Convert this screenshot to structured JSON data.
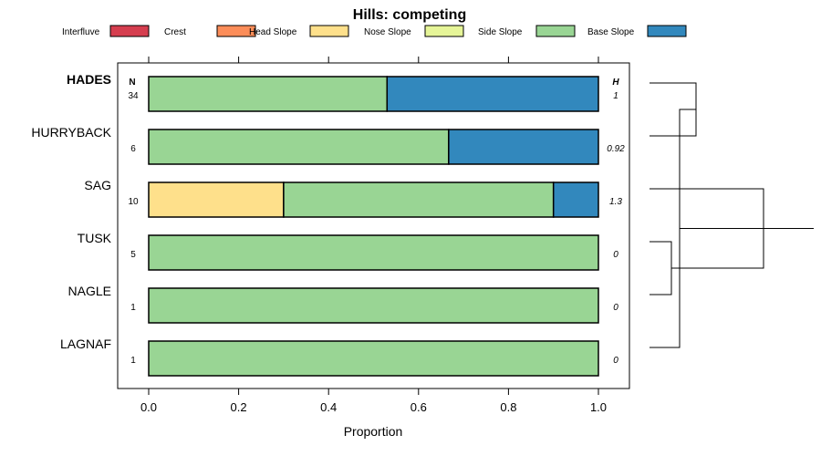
{
  "chart_data": {
    "type": "bar",
    "stacked": true,
    "title": "Hills: competing",
    "xlabel": "Proportion",
    "xlim": [
      0,
      1
    ],
    "xticks": [
      "0.0",
      "0.2",
      "0.4",
      "0.6",
      "0.8",
      "1.0"
    ],
    "n_header": "N",
    "h_header": "H",
    "legend": [
      {
        "name": "Interfluve",
        "color": "#D53E4F"
      },
      {
        "name": "Crest",
        "color": "#FC8D59"
      },
      {
        "name": "Head Slope",
        "color": "#FEE08B"
      },
      {
        "name": "Nose Slope",
        "color": "#E6F598"
      },
      {
        "name": "Side Slope",
        "color": "#99D594"
      },
      {
        "name": "Base Slope",
        "color": "#3288BD"
      }
    ],
    "rows": [
      {
        "name": "HADES",
        "bold": true,
        "n": "34",
        "h": "1",
        "segments": [
          {
            "class": "Side Slope",
            "value": 0.53
          },
          {
            "class": "Base Slope",
            "value": 0.47
          }
        ]
      },
      {
        "name": "HURRYBACK",
        "bold": false,
        "n": "6",
        "h": "0.92",
        "segments": [
          {
            "class": "Side Slope",
            "value": 0.667
          },
          {
            "class": "Base Slope",
            "value": 0.333
          }
        ]
      },
      {
        "name": "SAG",
        "bold": false,
        "n": "10",
        "h": "1.3",
        "segments": [
          {
            "class": "Head Slope",
            "value": 0.3
          },
          {
            "class": "Side Slope",
            "value": 0.6
          },
          {
            "class": "Base Slope",
            "value": 0.1
          }
        ]
      },
      {
        "name": "TUSK",
        "bold": false,
        "n": "5",
        "h": "0",
        "segments": [
          {
            "class": "Side Slope",
            "value": 1.0
          }
        ]
      },
      {
        "name": "NAGLE",
        "bold": false,
        "n": "1",
        "h": "0",
        "segments": [
          {
            "class": "Side Slope",
            "value": 1.0
          }
        ]
      },
      {
        "name": "LAGNAF",
        "bold": false,
        "n": "1",
        "h": "0",
        "segments": [
          {
            "class": "Side Slope",
            "value": 1.0
          }
        ]
      }
    ],
    "dendrogram_merges": [
      [
        0,
        1
      ],
      [
        3,
        4
      ],
      [
        6,
        5
      ],
      [
        7,
        2
      ],
      [
        8,
        9
      ]
    ]
  }
}
